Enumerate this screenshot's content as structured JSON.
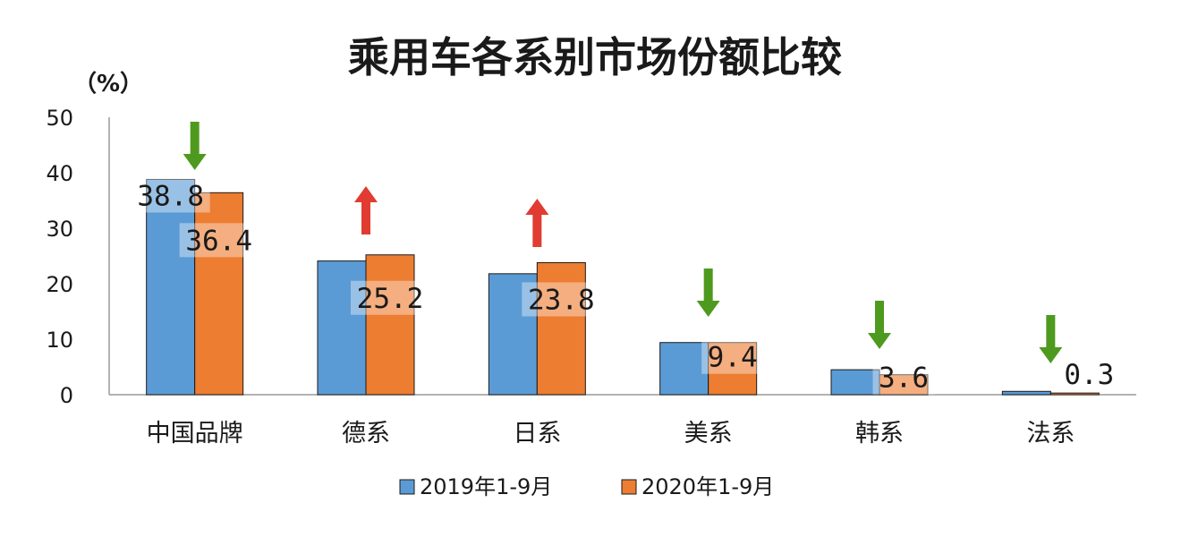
{
  "chart_data": {
    "type": "bar",
    "title": "乘用车各系别市场份额比较",
    "unit_label": "（%）",
    "categories": [
      "中国品牌",
      "德系",
      "日系",
      "美系",
      "韩系",
      "法系"
    ],
    "series": [
      {
        "name": "2019年1-9月",
        "color": "#5b9bd5",
        "values": [
          38.8,
          24.1,
          21.8,
          9.4,
          4.5,
          0.6
        ]
      },
      {
        "name": "2020年1-9月",
        "color": "#ed7d31",
        "values": [
          36.4,
          25.2,
          23.8,
          9.4,
          3.6,
          0.3
        ]
      }
    ],
    "data_labels": [
      "38.8",
      "36.4",
      "25.2",
      "23.8",
      "9.4",
      "3.6",
      "0.3"
    ],
    "trend_arrows": [
      "down",
      "up",
      "up",
      "down",
      "down",
      "down"
    ],
    "arrow_colors": {
      "up": "#e03c31",
      "down": "#4e9a1e"
    },
    "ylim": [
      0,
      50
    ],
    "yticks": [
      "0",
      "10",
      "20",
      "30",
      "40",
      "50"
    ],
    "grid": false,
    "legend_position": "bottom"
  }
}
